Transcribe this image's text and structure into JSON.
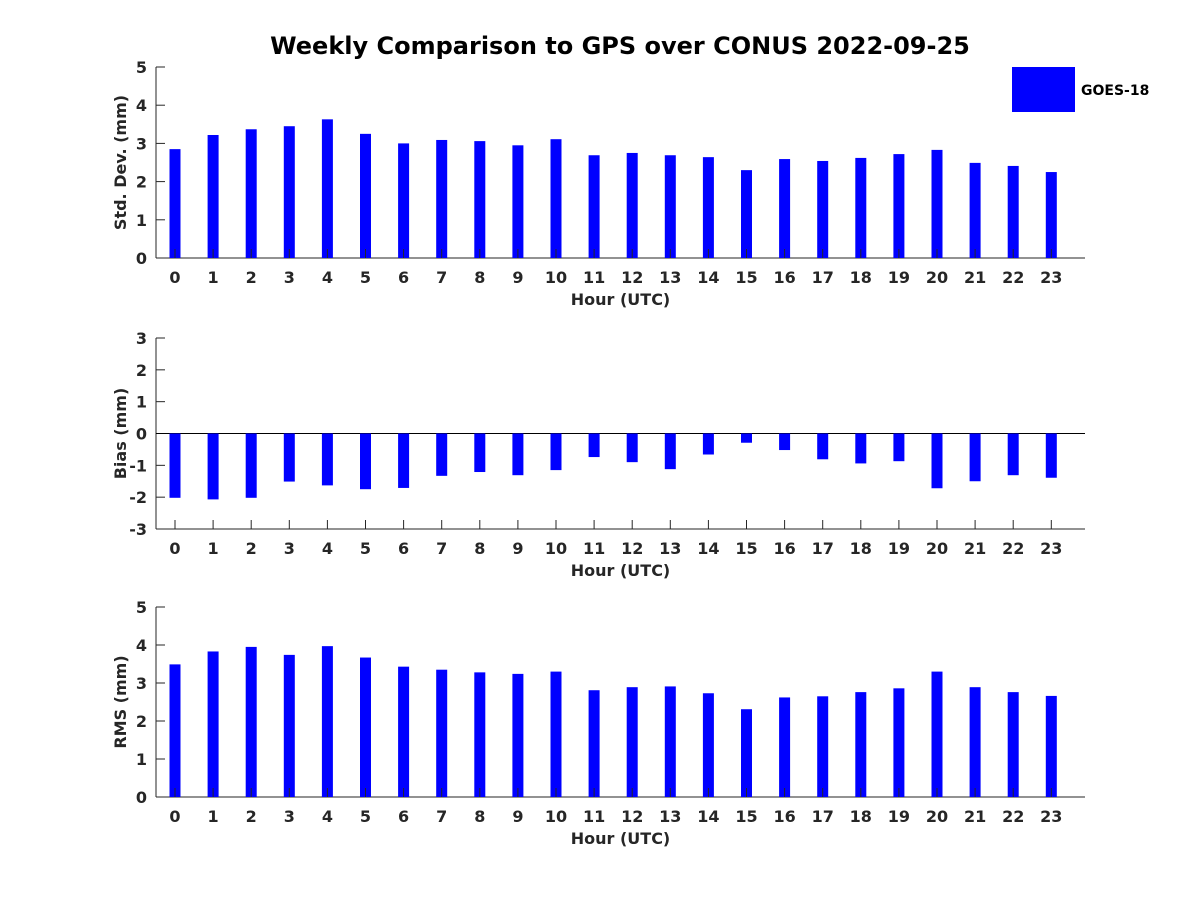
{
  "title": "Weekly Comparison to GPS over CONUS 2022-09-25",
  "legend": {
    "label": "GOES-18",
    "color": "#0000ff",
    "placement": "top-right"
  },
  "bar_color": "#0000ff",
  "chart_data": [
    {
      "type": "bar",
      "xlabel": "Hour (UTC)",
      "ylabel": "Std. Dev. (mm)",
      "ylim": [
        0,
        5
      ],
      "yticks": [
        0,
        1,
        2,
        3,
        4,
        5
      ],
      "categories": [
        0,
        1,
        2,
        3,
        4,
        5,
        6,
        7,
        8,
        9,
        10,
        11,
        12,
        13,
        14,
        15,
        16,
        17,
        18,
        19,
        20,
        21,
        22,
        23
      ],
      "series": [
        {
          "name": "GOES-18",
          "values": [
            2.85,
            3.22,
            3.37,
            3.45,
            3.63,
            3.25,
            3.0,
            3.09,
            3.06,
            2.95,
            3.11,
            2.69,
            2.75,
            2.69,
            2.64,
            2.3,
            2.59,
            2.54,
            2.62,
            2.72,
            2.83,
            2.49,
            2.41,
            2.25
          ]
        }
      ]
    },
    {
      "type": "bar",
      "xlabel": "Hour (UTC)",
      "ylabel": "Bias (mm)",
      "ylim": [
        -3,
        3
      ],
      "yticks": [
        -3,
        -2,
        -1,
        0,
        1,
        2,
        3
      ],
      "zero_line": true,
      "categories": [
        0,
        1,
        2,
        3,
        4,
        5,
        6,
        7,
        8,
        9,
        10,
        11,
        12,
        13,
        14,
        15,
        16,
        17,
        18,
        19,
        20,
        21,
        22,
        23
      ],
      "series": [
        {
          "name": "GOES-18",
          "values": [
            -2.02,
            -2.07,
            -2.02,
            -1.51,
            -1.63,
            -1.75,
            -1.71,
            -1.33,
            -1.21,
            -1.31,
            -1.15,
            -0.74,
            -0.9,
            -1.12,
            -0.66,
            -0.29,
            -0.52,
            -0.81,
            -0.94,
            -0.87,
            -1.72,
            -1.5,
            -1.31,
            -1.39
          ]
        }
      ]
    },
    {
      "type": "bar",
      "xlabel": "Hour (UTC)",
      "ylabel": "RMS (mm)",
      "ylim": [
        0,
        5
      ],
      "yticks": [
        0,
        1,
        2,
        3,
        4,
        5
      ],
      "categories": [
        0,
        1,
        2,
        3,
        4,
        5,
        6,
        7,
        8,
        9,
        10,
        11,
        12,
        13,
        14,
        15,
        16,
        17,
        18,
        19,
        20,
        21,
        22,
        23
      ],
      "series": [
        {
          "name": "GOES-18",
          "values": [
            3.49,
            3.83,
            3.95,
            3.74,
            3.97,
            3.67,
            3.43,
            3.35,
            3.28,
            3.24,
            3.3,
            2.81,
            2.89,
            2.91,
            2.73,
            2.31,
            2.62,
            2.65,
            2.76,
            2.86,
            3.3,
            2.89,
            2.76,
            2.66
          ]
        }
      ]
    }
  ]
}
